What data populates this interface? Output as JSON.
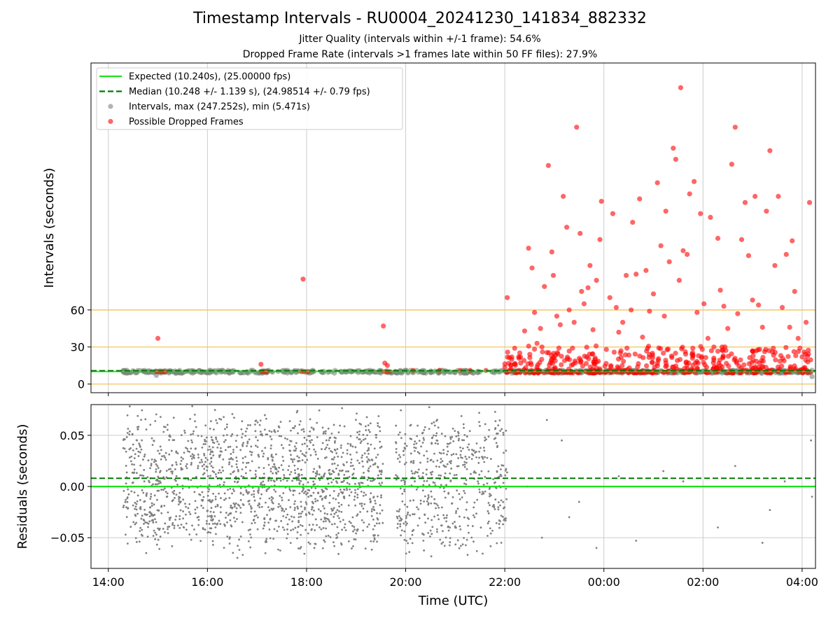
{
  "header": {
    "title": "Timestamp Intervals - RU0004_20241230_141834_882332",
    "subtitle1": "Jitter Quality (intervals within +/-1 frame): 54.6%",
    "subtitle2": "Dropped Frame Rate (intervals >1 frames late within 50 FF files): 27.9%"
  },
  "colors": {
    "expected": "#1fe01f",
    "median": "#007a00",
    "intervals": "#808080",
    "dropped": "#ff0000",
    "threshold_lines": "#f2c45a",
    "grid": "#cccccc"
  },
  "chart_data": [
    {
      "type": "scatter",
      "xlabel": "",
      "ylabel": "Intervals (seconds)",
      "ylim": [
        -7,
        260
      ],
      "yticks": [
        0,
        30,
        60
      ],
      "ytick_labels": [
        "0",
        "30",
        "60"
      ],
      "threshold_lines": [
        0,
        30,
        60
      ],
      "grid": "vertical",
      "legend_position": "upper-left",
      "legend": [
        {
          "label": "Expected (10.240s), (25.00000 fps)",
          "marker": "solid-line",
          "color": "#1fe01f"
        },
        {
          "label": "Median (10.248 +/- 1.139 s), (24.98514 +/- 0.79 fps)",
          "marker": "dashed-line",
          "color": "#007a00"
        },
        {
          "label": "Intervals, max (247.252s), min (5.471s)",
          "marker": "dot",
          "color": "#808080"
        },
        {
          "label": "Possible Dropped Frames",
          "marker": "dot",
          "color": "#ff0000"
        }
      ],
      "expected_value": 10.24,
      "median_value": 10.248,
      "series": [
        {
          "name": "Possible Dropped Frames",
          "points": [
            [
              15.0,
              37
            ],
            [
              14.98,
              10
            ],
            [
              15.05,
              10
            ],
            [
              15.1,
              10
            ],
            [
              15.15,
              10
            ],
            [
              17.08,
              16
            ],
            [
              17.1,
              10
            ],
            [
              17.15,
              10
            ],
            [
              17.2,
              10
            ],
            [
              17.9,
              10
            ],
            [
              17.95,
              10
            ],
            [
              18.03,
              10
            ],
            [
              17.93,
              85
            ],
            [
              19.55,
              47
            ],
            [
              19.58,
              17
            ],
            [
              19.63,
              15
            ],
            [
              19.57,
              10
            ],
            [
              19.62,
              10
            ],
            [
              19.68,
              10
            ],
            [
              20.15,
              11
            ],
            [
              20.68,
              11
            ],
            [
              21.1,
              11
            ],
            [
              21.3,
              11
            ],
            [
              21.62,
              11
            ],
            [
              22.05,
              70
            ],
            [
              22.2,
              29
            ],
            [
              22.28,
              22
            ],
            [
              22.32,
              17
            ],
            [
              22.4,
              43
            ],
            [
              22.48,
              110
            ],
            [
              22.55,
              94
            ],
            [
              22.6,
              58
            ],
            [
              22.65,
              33
            ],
            [
              22.72,
              45
            ],
            [
              22.75,
              30
            ],
            [
              22.8,
              79
            ],
            [
              22.88,
              177
            ],
            [
              22.95,
              107
            ],
            [
              22.98,
              88
            ],
            [
              23.05,
              55
            ],
            [
              23.12,
              48
            ],
            [
              23.18,
              152
            ],
            [
              23.25,
              127
            ],
            [
              23.3,
              60
            ],
            [
              23.4,
              50
            ],
            [
              23.45,
              208
            ],
            [
              23.52,
              122
            ],
            [
              23.55,
              75
            ],
            [
              23.6,
              65
            ],
            [
              23.68,
              78
            ],
            [
              23.72,
              96
            ],
            [
              23.78,
              44
            ],
            [
              23.85,
              84
            ],
            [
              23.92,
              117
            ],
            [
              23.95,
              148
            ],
            [
              24.05,
              28
            ],
            [
              24.12,
              70
            ],
            [
              24.18,
              138
            ],
            [
              24.25,
              62
            ],
            [
              24.3,
              42
            ],
            [
              24.38,
              50
            ],
            [
              24.45,
              88
            ],
            [
              24.55,
              60
            ],
            [
              24.58,
              131
            ],
            [
              24.65,
              89
            ],
            [
              24.72,
              150
            ],
            [
              24.78,
              38
            ],
            [
              24.85,
              92
            ],
            [
              24.92,
              59
            ],
            [
              25.0,
              73
            ],
            [
              25.08,
              163
            ],
            [
              25.15,
              112
            ],
            [
              25.22,
              55
            ],
            [
              25.25,
              140
            ],
            [
              25.32,
              99
            ],
            [
              25.4,
              191
            ],
            [
              25.45,
              182
            ],
            [
              25.52,
              84
            ],
            [
              25.55,
              240
            ],
            [
              25.6,
              108
            ],
            [
              25.68,
              105
            ],
            [
              25.73,
              154
            ],
            [
              25.82,
              164
            ],
            [
              25.88,
              58
            ],
            [
              25.95,
              138
            ],
            [
              26.02,
              65
            ],
            [
              26.1,
              37
            ],
            [
              26.15,
              135
            ],
            [
              26.22,
              30
            ],
            [
              26.3,
              118
            ],
            [
              26.35,
              76
            ],
            [
              26.42,
              63
            ],
            [
              26.5,
              45
            ],
            [
              26.58,
              178
            ],
            [
              26.65,
              208
            ],
            [
              26.7,
              57
            ],
            [
              26.78,
              117
            ],
            [
              26.85,
              147
            ],
            [
              26.92,
              104
            ],
            [
              27.0,
              68
            ],
            [
              27.05,
              152
            ],
            [
              27.12,
              64
            ],
            [
              27.2,
              46
            ],
            [
              27.28,
              140
            ],
            [
              27.35,
              189
            ],
            [
              27.4,
              26
            ],
            [
              27.45,
              96
            ],
            [
              27.52,
              152
            ],
            [
              27.6,
              62
            ],
            [
              27.68,
              105
            ],
            [
              27.75,
              46
            ],
            [
              27.8,
              116
            ],
            [
              27.85,
              75
            ],
            [
              27.92,
              37
            ],
            [
              28.0,
              22
            ],
            [
              28.08,
              50
            ],
            [
              28.15,
              147
            ]
          ]
        },
        {
          "name": "Intervals",
          "points": [
            [
              14.3,
              10
            ],
            [
              14.8,
              10
            ],
            [
              14.97,
              7
            ],
            [
              15.3,
              10
            ],
            [
              15.8,
              10
            ],
            [
              16.3,
              10
            ],
            [
              16.8,
              10
            ],
            [
              17.3,
              10
            ],
            [
              17.8,
              10
            ],
            [
              18.3,
              10
            ],
            [
              18.8,
              10
            ],
            [
              19.3,
              10
            ],
            [
              19.8,
              10
            ],
            [
              20.3,
              10
            ],
            [
              20.8,
              10
            ],
            [
              21.3,
              10
            ],
            [
              21.8,
              10
            ],
            [
              22.3,
              10
            ],
            [
              22.8,
              10
            ],
            [
              23.3,
              10
            ],
            [
              23.8,
              10
            ],
            [
              24.3,
              10
            ],
            [
              24.8,
              10
            ],
            [
              25.3,
              10
            ],
            [
              25.8,
              10
            ],
            [
              26.3,
              10
            ],
            [
              26.8,
              10
            ],
            [
              27.3,
              10
            ],
            [
              27.8,
              10
            ],
            [
              28.2,
              6
            ]
          ]
        }
      ]
    },
    {
      "type": "scatter",
      "xlabel": "Time (UTC)",
      "ylabel": "Residuals (seconds)",
      "ylim": [
        -0.08,
        0.08
      ],
      "yticks": [
        -0.05,
        0.0,
        0.05
      ],
      "ytick_labels": [
        "−0.05",
        "0.00",
        "0.05"
      ],
      "xlim": [
        13.65,
        28.27
      ],
      "xticks": [
        14,
        16,
        18,
        20,
        22,
        24,
        26,
        28
      ],
      "xtick_labels": [
        "14:00",
        "16:00",
        "18:00",
        "20:00",
        "22:00",
        "00:00",
        "02:00",
        "04:00"
      ],
      "grid": "both",
      "expected_value": 0.0,
      "median_value": 0.008,
      "series": [
        {
          "name": "Residuals",
          "note_dense_ranges": [
            [
              14.3,
              19.55
            ],
            [
              19.8,
              22.05
            ]
          ],
          "sparse_points": [
            [
              22.45,
              0.0
            ],
            [
              22.75,
              -0.05
            ],
            [
              22.85,
              0.065
            ],
            [
              23.15,
              0.045
            ],
            [
              23.3,
              -0.03
            ],
            [
              23.5,
              -0.015
            ],
            [
              23.85,
              -0.06
            ],
            [
              24.3,
              0.01
            ],
            [
              24.65,
              -0.053
            ],
            [
              25.2,
              0.015
            ],
            [
              25.6,
              0.005
            ],
            [
              26.3,
              -0.04
            ],
            [
              26.65,
              0.02
            ],
            [
              27.35,
              -0.023
            ],
            [
              27.2,
              -0.055
            ],
            [
              27.65,
              0.005
            ],
            [
              28.18,
              0.045
            ],
            [
              28.2,
              -0.01
            ]
          ]
        }
      ]
    }
  ]
}
